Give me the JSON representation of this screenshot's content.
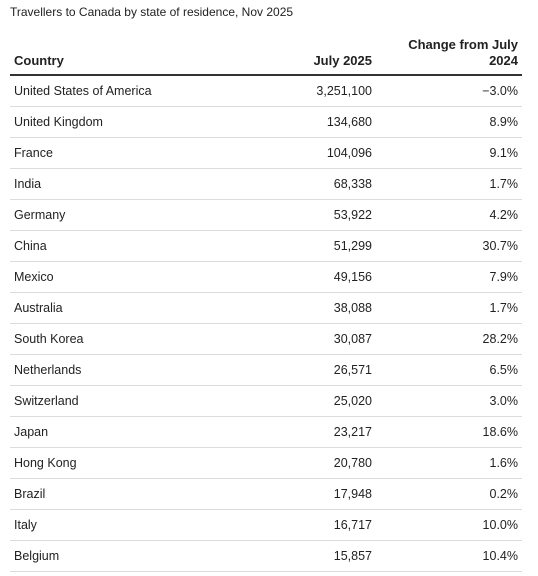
{
  "title": "Travellers to Canada by state of residence, Nov 2025",
  "chart_data": {
    "type": "table",
    "title": "Travellers to Canada by state of residence, Nov 2025",
    "columns": [
      "Country",
      "July 2025",
      "Change from July 2024"
    ],
    "rows": [
      {
        "country": "United States of America",
        "value": "3,251,100",
        "change": "−3.0%"
      },
      {
        "country": "United Kingdom",
        "value": "134,680",
        "change": "8.9%"
      },
      {
        "country": "France",
        "value": "104,096",
        "change": "9.1%"
      },
      {
        "country": "India",
        "value": "68,338",
        "change": "1.7%"
      },
      {
        "country": "Germany",
        "value": "53,922",
        "change": "4.2%"
      },
      {
        "country": "China",
        "value": "51,299",
        "change": "30.7%"
      },
      {
        "country": "Mexico",
        "value": "49,156",
        "change": "7.9%"
      },
      {
        "country": "Australia",
        "value": "38,088",
        "change": "1.7%"
      },
      {
        "country": "South Korea",
        "value": "30,087",
        "change": "28.2%"
      },
      {
        "country": "Netherlands",
        "value": "26,571",
        "change": "6.5%"
      },
      {
        "country": "Switzerland",
        "value": "25,020",
        "change": "3.0%"
      },
      {
        "country": "Japan",
        "value": "23,217",
        "change": "18.6%"
      },
      {
        "country": "Hong Kong",
        "value": "20,780",
        "change": "1.6%"
      },
      {
        "country": "Brazil",
        "value": "17,948",
        "change": "0.2%"
      },
      {
        "country": "Italy",
        "value": "16,717",
        "change": "10.0%"
      },
      {
        "country": "Belgium",
        "value": "15,857",
        "change": "10.4%"
      }
    ]
  }
}
